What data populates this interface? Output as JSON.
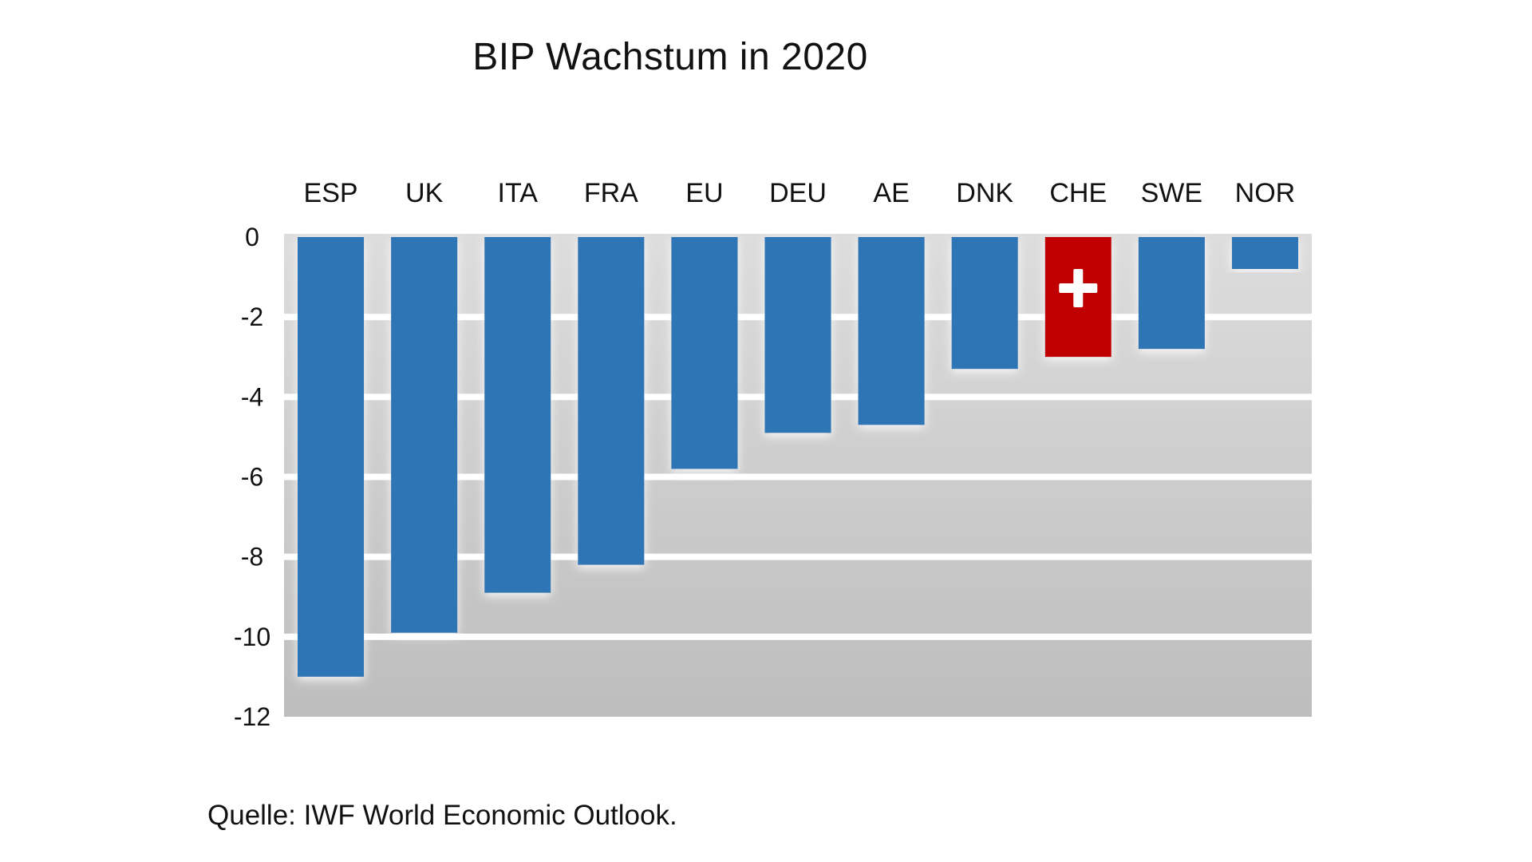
{
  "chart_data": {
    "type": "bar",
    "title": "BIP Wachstum in 2020",
    "xlabel": "",
    "ylabel": "",
    "categories": [
      "ESP",
      "UK",
      "ITA",
      "FRA",
      "EU",
      "DEU",
      "AE",
      "DNK",
      "CHE",
      "SWE",
      "NOR"
    ],
    "values": [
      -11.0,
      -9.9,
      -8.9,
      -8.2,
      -5.8,
      -4.9,
      -4.7,
      -3.3,
      -3.0,
      -2.8,
      -0.8
    ],
    "highlight_category": "CHE",
    "highlight_icon": "swiss-cross-icon",
    "ylim": [
      -12,
      0
    ],
    "yticks": [
      0,
      -2,
      -4,
      -6,
      -8,
      -10,
      -12
    ],
    "ytick_labels": [
      "0",
      "-2",
      "-4",
      "-6",
      "-8",
      "-10",
      "-12"
    ],
    "category_axis_position": "top",
    "grid": true,
    "legend": "none",
    "colors": {
      "bar": "#2e75b6",
      "highlight": "#c00000",
      "highlight_icon": "#ffffff",
      "plot_background_top": "#dddddd",
      "plot_background_bottom": "#bdbdbd",
      "gridline": "#ffffff"
    },
    "source": "Quelle: IWF World Economic Outlook."
  }
}
